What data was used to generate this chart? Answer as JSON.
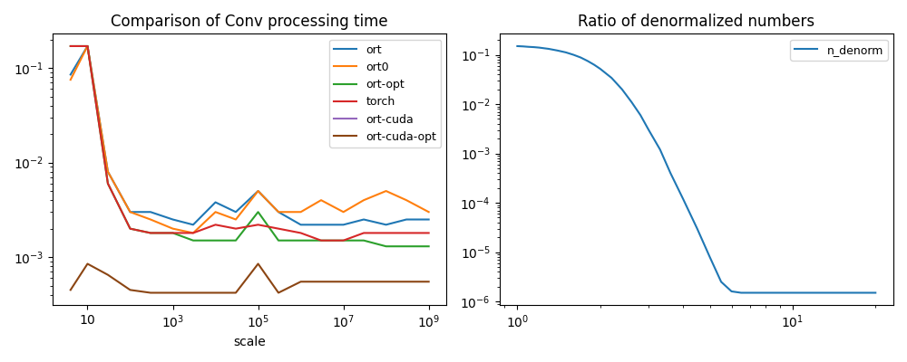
{
  "title1": "Comparison of Conv processing time",
  "title2": "Ratio of denormalized numbers",
  "xlabel1": "scale",
  "legend1": [
    "ort",
    "ort0",
    "ort-opt",
    "torch",
    "ort-cuda",
    "ort-cuda-opt"
  ],
  "legend2": [
    "n_denorm"
  ],
  "colors1": [
    "#1f77b4",
    "#ff7f0e",
    "#2ca02c",
    "#d62728",
    "#9467bd",
    "#8b4513"
  ],
  "color2": "#1f77b4",
  "scale_x": [
    4,
    10,
    30,
    100,
    300,
    1000,
    3000,
    10000,
    30000,
    100000,
    300000,
    1000000,
    3000000,
    10000000,
    30000000,
    100000000,
    300000000,
    1000000000
  ],
  "ort_y": [
    0.085,
    0.17,
    0.008,
    0.003,
    0.003,
    0.0025,
    0.0022,
    0.0038,
    0.003,
    0.005,
    0.003,
    0.0022,
    0.0022,
    0.0022,
    0.0025,
    0.0022,
    0.0025,
    0.0025
  ],
  "ort0_y": [
    0.075,
    0.17,
    0.008,
    0.003,
    0.0025,
    0.002,
    0.0018,
    0.003,
    0.0025,
    0.005,
    0.003,
    0.003,
    0.004,
    0.003,
    0.004,
    0.005,
    0.004,
    0.003
  ],
  "ortopt_y": [
    0.17,
    0.17,
    0.006,
    0.002,
    0.0018,
    0.0018,
    0.0015,
    0.0015,
    0.0015,
    0.003,
    0.0015,
    0.0015,
    0.0015,
    0.0015,
    0.0015,
    0.0013,
    0.0013,
    0.0013
  ],
  "torch_y": [
    0.17,
    0.17,
    0.006,
    0.002,
    0.0018,
    0.0018,
    0.0018,
    0.0022,
    0.002,
    0.0022,
    0.002,
    0.0018,
    0.0015,
    0.0015,
    0.0018,
    0.0018,
    0.0018,
    0.0018
  ],
  "ortcuda_y": [
    null,
    null,
    null,
    null,
    null,
    null,
    null,
    null,
    null,
    null,
    null,
    null,
    null,
    null,
    null,
    null,
    null,
    null
  ],
  "ortcudaopt_y": [
    0.00045,
    0.00085,
    0.00065,
    0.00045,
    0.00042,
    0.00042,
    0.00042,
    0.00042,
    0.00042,
    0.00085,
    0.00042,
    0.00055,
    0.00055,
    0.00055,
    0.00055,
    0.00055,
    0.00055,
    0.00055
  ],
  "denorm_x": [
    1.0,
    1.05,
    1.1,
    1.15,
    1.2,
    1.3,
    1.4,
    1.5,
    1.6,
    1.7,
    1.8,
    1.9,
    2.0,
    2.2,
    2.4,
    2.6,
    2.8,
    3.0,
    3.3,
    3.6,
    4.0,
    4.5,
    5.0,
    5.5,
    6.0,
    6.5,
    7.0,
    7.5,
    8.0,
    8.5,
    9.0,
    10.0,
    12.0,
    15.0,
    20.0
  ],
  "denorm_y": [
    0.15,
    0.148,
    0.145,
    0.143,
    0.14,
    0.132,
    0.122,
    0.112,
    0.1,
    0.088,
    0.075,
    0.063,
    0.052,
    0.034,
    0.02,
    0.011,
    0.006,
    0.003,
    0.0012,
    0.0004,
    0.00012,
    3e-05,
    8e-06,
    2.5e-06,
    1.6e-06,
    1.5e-06,
    1.5e-06,
    1.5e-06,
    1.5e-06,
    1.5e-06,
    1.5e-06,
    1.5e-06,
    1.5e-06,
    1.5e-06,
    1.5e-06
  ],
  "xticks1": [
    10,
    1000,
    100000,
    10000000,
    1000000000
  ],
  "xtick_labels1": [
    "$10$",
    "$10^3$",
    "$10^5$",
    "$10^7$",
    "$10^9$"
  ]
}
